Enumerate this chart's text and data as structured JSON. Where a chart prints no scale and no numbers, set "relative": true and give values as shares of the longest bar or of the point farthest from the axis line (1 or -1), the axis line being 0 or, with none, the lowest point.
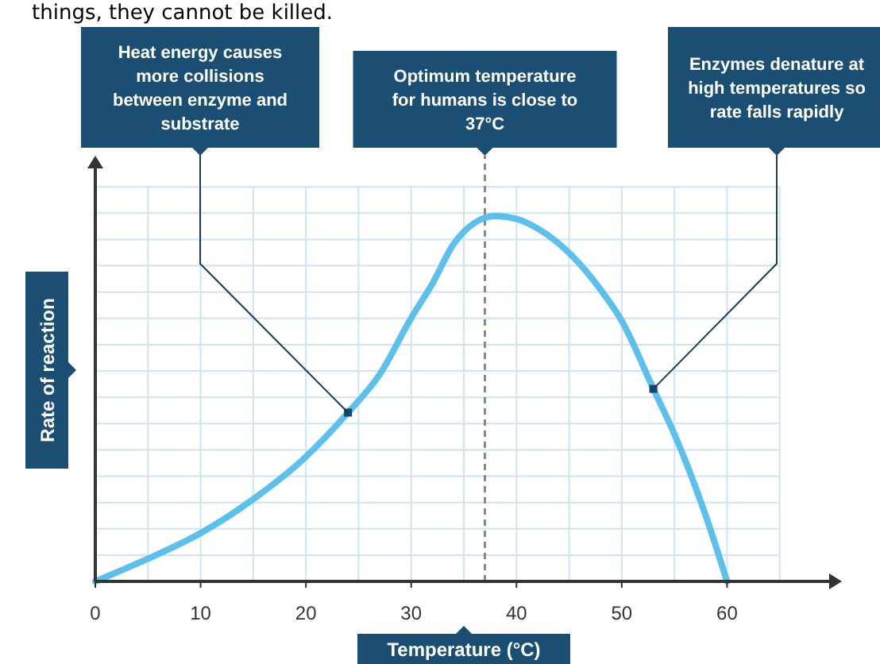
{
  "chart_data": {
    "type": "line",
    "relative": true,
    "xlabel": "Temperature (°C)",
    "ylabel": "Rate of reaction",
    "x": [
      0,
      5,
      10,
      15,
      20,
      24,
      27,
      30,
      32,
      34,
      36,
      38,
      40,
      42,
      45,
      48,
      50,
      53,
      55,
      58,
      60
    ],
    "series": [
      {
        "color": "#5bc0eb",
        "values": [
          0,
          0.062,
          0.132,
          0.225,
          0.341,
          0.462,
          0.566,
          0.721,
          0.814,
          0.922,
          0.981,
          1,
          0.992,
          0.966,
          0.899,
          0.798,
          0.713,
          0.527,
          0.403,
          0.178,
          0
        ]
      },
      {
        "type": "scatter",
        "marker": "square",
        "color": "#0f4a6e",
        "x": [
          24,
          53
        ],
        "values": [
          0.462,
          0.527
        ]
      }
    ],
    "xlim": [
      0,
      70
    ],
    "xticks": [
      0,
      10,
      20,
      30,
      40,
      50,
      60
    ],
    "grid": true,
    "marker": "none",
    "line_style": "solid",
    "ref_lines": [
      {
        "axis": "x",
        "value": 37,
        "color": "#888888",
        "line_style": "dashed"
      }
    ],
    "annotations": [
      "things, they cannot be killed.",
      "Optimum temperature for humans is close to 37°C",
      "Heat energy causes more collisions between enzyme and substrate",
      "Enzymes denature at high temperatures so rate falls rapidly"
    ]
  }
}
